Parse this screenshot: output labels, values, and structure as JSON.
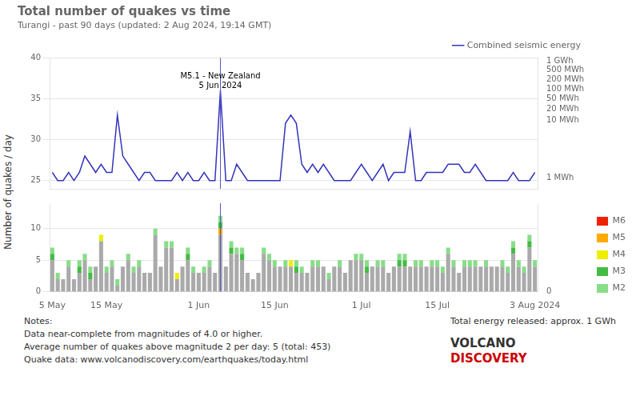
{
  "chart_data": [
    {
      "type": "line",
      "title": "Total number of quakes vs time",
      "subtitle": "Turangi - past 90 days (updated: 2 Aug 2024, 19:14 GMT)",
      "ylabel": "Number of quakes / day",
      "categories": [
        "5 May",
        null,
        null,
        null,
        null,
        null,
        null,
        null,
        null,
        null,
        "15 May",
        null,
        null,
        null,
        null,
        null,
        null,
        null,
        null,
        null,
        null,
        null,
        null,
        null,
        null,
        null,
        null,
        "1 Jun",
        null,
        null,
        null,
        null,
        null,
        null,
        null,
        null,
        null,
        null,
        null,
        null,
        null,
        "15 Jun",
        null,
        null,
        null,
        null,
        null,
        null,
        null,
        null,
        null,
        null,
        null,
        null,
        null,
        null,
        null,
        "1 Jul",
        null,
        null,
        null,
        null,
        null,
        null,
        null,
        null,
        null,
        null,
        null,
        null,
        null,
        "15 Jul",
        null,
        null,
        null,
        null,
        null,
        null,
        null,
        null,
        null,
        null,
        null,
        null,
        null,
        null,
        null,
        null,
        null,
        "3 Aug 2024"
      ],
      "series": [
        {
          "name": "Combined seismic energy",
          "color": "#3333bb",
          "values": [
            26,
            25,
            25,
            26,
            25,
            26,
            28,
            27,
            26,
            27,
            26,
            26,
            33,
            28,
            27,
            26,
            25,
            26,
            26,
            25,
            25,
            25,
            25,
            26,
            25,
            26,
            25,
            25,
            26,
            25,
            25,
            36,
            25,
            25,
            27,
            26,
            25,
            25,
            25,
            25,
            25,
            25,
            25,
            32,
            33,
            32,
            27,
            26,
            27,
            26,
            27,
            26,
            25,
            25,
            25,
            25,
            26,
            27,
            26,
            25,
            26,
            27,
            25,
            26,
            26,
            26,
            31,
            25,
            25,
            26,
            26,
            26,
            26,
            27,
            27,
            27,
            26,
            26,
            27,
            26,
            25,
            25,
            25,
            25,
            25,
            26,
            25,
            25,
            25,
            26
          ]
        }
      ],
      "ylim": [
        24,
        40
      ],
      "yticks": [
        25,
        30,
        35,
        40
      ],
      "y2lim": [
        24,
        40
      ],
      "y2ticks": [
        {
          "value": 39.6,
          "label": "1 GWh"
        },
        {
          "value": 38.5,
          "label": "500 MWh"
        },
        {
          "value": 37.3,
          "label": "200 MWh"
        },
        {
          "value": 36.2,
          "label": "100 MWh"
        },
        {
          "value": 35.0,
          "label": "50 MWh"
        },
        {
          "value": 33.7,
          "label": "20 MWh"
        },
        {
          "value": 32.4,
          "label": "10 MWh"
        },
        {
          "value": 25.3,
          "label": "1 MWh"
        }
      ],
      "grid": true,
      "legend": "top",
      "tick_labels": "y",
      "annotations": [
        {
          "text": "M5.1 - New Zealand\n5 Jun 2024",
          "x": 31,
          "y": 38.2,
          "color": "#5555cc"
        }
      ]
    },
    {
      "type": "bar",
      "stacked": true,
      "categories": [
        "5 May",
        null,
        null,
        null,
        null,
        null,
        null,
        null,
        null,
        null,
        "15 May",
        null,
        null,
        null,
        null,
        null,
        null,
        null,
        null,
        null,
        null,
        null,
        null,
        null,
        null,
        null,
        null,
        "1 Jun",
        null,
        null,
        null,
        null,
        null,
        null,
        null,
        null,
        null,
        null,
        null,
        null,
        null,
        "15 Jun",
        null,
        null,
        null,
        null,
        null,
        null,
        null,
        null,
        null,
        null,
        null,
        null,
        null,
        null,
        null,
        "1 Jul",
        null,
        null,
        null,
        null,
        null,
        null,
        null,
        null,
        null,
        null,
        null,
        null,
        null,
        "15 Jul",
        null,
        null,
        null,
        null,
        null,
        null,
        null,
        null,
        null,
        null,
        null,
        null,
        null,
        null,
        null,
        null,
        null,
        "3 Aug 2024"
      ],
      "series": [
        {
          "color": "#aaaaaa",
          "values": [
            5,
            2,
            2,
            4,
            2,
            3,
            5,
            2,
            4,
            8,
            3,
            4,
            1,
            4,
            5,
            3,
            4,
            3,
            3,
            9,
            4,
            7,
            7,
            2,
            4,
            5,
            3,
            3,
            3,
            4,
            3,
            9,
            4,
            6,
            6,
            5,
            3,
            2,
            3,
            6,
            5,
            4,
            4,
            4,
            4,
            3,
            3,
            3,
            4,
            4,
            4,
            2,
            4,
            4,
            3,
            5,
            5,
            5,
            3,
            4,
            4,
            4,
            3,
            4,
            4,
            4,
            4,
            4,
            4,
            4,
            4,
            4,
            3,
            6,
            4,
            3,
            4,
            4,
            4,
            4,
            4,
            4,
            4,
            4,
            3,
            6,
            4,
            3,
            7,
            4
          ]
        },
        {
          "name": "M6",
          "color": "#ee2200",
          "values": [
            0,
            0,
            0,
            0,
            0,
            0,
            0,
            0,
            0,
            0,
            0,
            0,
            0,
            0,
            0,
            0,
            0,
            0,
            0,
            0,
            0,
            0,
            0,
            0,
            0,
            0,
            0,
            0,
            0,
            0,
            0,
            0,
            0,
            0,
            0,
            0,
            0,
            0,
            0,
            0,
            0,
            0,
            0,
            0,
            0,
            0,
            0,
            0,
            0,
            0,
            0,
            0,
            0,
            0,
            0,
            0,
            0,
            0,
            0,
            0,
            0,
            0,
            0,
            0,
            0,
            0,
            0,
            0,
            0,
            0,
            0,
            0,
            0,
            0,
            0,
            0,
            0,
            0,
            0,
            0,
            0,
            0,
            0,
            0,
            0,
            0,
            0,
            0,
            0,
            0
          ]
        },
        {
          "name": "M5",
          "color": "#ffaa00",
          "values": [
            0,
            0,
            0,
            0,
            0,
            0,
            0,
            0,
            0,
            0,
            0,
            0,
            0,
            0,
            0,
            0,
            0,
            0,
            0,
            0,
            0,
            0,
            0,
            0,
            0,
            0,
            0,
            0,
            0,
            0,
            0,
            1,
            0,
            0,
            0,
            0,
            0,
            0,
            0,
            0,
            0,
            0,
            0,
            0,
            0,
            0,
            0,
            0,
            0,
            0,
            0,
            0,
            0,
            0,
            0,
            0,
            0,
            0,
            0,
            0,
            0,
            0,
            0,
            0,
            0,
            0,
            0,
            0,
            0,
            0,
            0,
            0,
            0,
            0,
            0,
            0,
            0,
            0,
            0,
            0,
            0,
            0,
            0,
            0,
            0,
            0,
            0,
            0,
            0,
            0
          ]
        },
        {
          "name": "M4",
          "color": "#eeee00",
          "values": [
            0,
            0,
            0,
            0,
            0,
            0,
            0,
            0,
            0,
            1,
            0,
            0,
            0,
            0,
            0,
            0,
            0,
            0,
            0,
            0,
            0,
            0,
            0,
            1,
            0,
            0,
            0,
            0,
            0,
            0,
            0,
            0,
            0,
            0,
            0,
            0,
            0,
            0,
            0,
            0,
            0,
            0,
            0,
            0,
            1,
            0,
            0,
            0,
            0,
            0,
            0,
            0,
            0,
            0,
            0,
            0,
            0,
            0,
            0,
            0,
            0,
            0,
            0,
            0,
            0,
            0,
            0,
            0,
            0,
            0,
            0,
            0,
            0,
            0,
            0,
            0,
            0,
            0,
            0,
            0,
            0,
            0,
            0,
            0,
            0,
            0,
            0,
            0,
            0,
            0
          ]
        },
        {
          "name": "M3",
          "color": "#44bb44",
          "values": [
            1,
            0,
            0,
            0,
            0,
            1,
            0,
            1,
            0,
            0,
            0,
            0,
            0,
            0,
            0,
            0,
            0,
            0,
            0,
            0,
            0,
            0,
            0,
            0,
            0,
            1,
            0,
            0,
            0,
            0,
            0,
            1,
            0,
            1,
            0,
            1,
            0,
            0,
            0,
            0,
            0,
            0,
            0,
            0,
            0,
            1,
            0,
            0,
            0,
            0,
            0,
            0,
            0,
            0,
            0,
            0,
            0,
            0,
            1,
            0,
            0,
            0,
            0,
            0,
            1,
            1,
            0,
            0,
            0,
            0,
            0,
            0,
            0,
            0,
            0,
            0,
            0,
            0,
            0,
            0,
            0,
            0,
            0,
            0,
            0,
            1,
            0,
            0,
            1,
            0
          ]
        },
        {
          "name": "M2",
          "color": "#88dd88",
          "values": [
            1,
            1,
            0,
            1,
            0,
            1,
            1,
            1,
            0,
            0,
            1,
            1,
            1,
            0,
            1,
            1,
            1,
            0,
            0,
            1,
            0,
            1,
            1,
            0,
            0,
            1,
            1,
            0,
            1,
            1,
            0,
            1,
            0,
            1,
            1,
            1,
            0,
            0,
            0,
            1,
            1,
            1,
            0,
            1,
            0,
            1,
            1,
            0,
            1,
            1,
            0,
            1,
            0,
            1,
            0,
            0,
            1,
            1,
            1,
            0,
            1,
            1,
            0,
            0,
            1,
            1,
            0,
            1,
            1,
            0,
            1,
            1,
            1,
            1,
            1,
            0,
            1,
            1,
            1,
            0,
            1,
            0,
            0,
            1,
            1,
            1,
            1,
            1,
            1,
            1
          ]
        }
      ],
      "ylim": [
        0,
        14
      ],
      "yticks": [
        0,
        5,
        10
      ],
      "y2lim": [
        0,
        14
      ],
      "y2ticks": [
        0
      ],
      "grid": true,
      "legend": "right",
      "annotations": [
        {
          "x": 31,
          "color": "#5555cc"
        },
        {
          "text": "Total energy released: approx. 1 GWh"
        },
        {
          "text": "VOLCANO"
        },
        {
          "text": "DISCOVERY",
          "color": "#cc0000"
        }
      ],
      "notes": [
        "Notes:",
        "Data near-complete from magnitudes of 4.0 or higher.",
        "Average number of quakes above magnitude 2 per day: 5 (total: 453)",
        "Quake data: www.volcanodiscovery.com/earthquakes/today.html"
      ]
    }
  ]
}
